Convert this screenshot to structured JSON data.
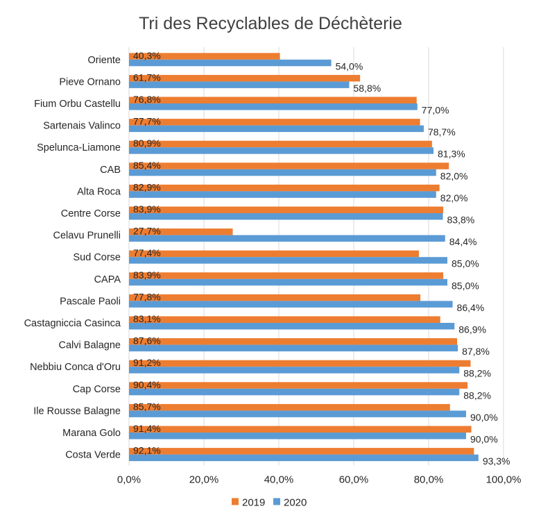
{
  "chart_data": {
    "type": "bar",
    "orientation": "horizontal",
    "title": "Tri des Recyclables de Déchèterie",
    "xlabel": "",
    "ylabel": "",
    "xlim": [
      0,
      100
    ],
    "x_ticks": [
      "0,0%",
      "20,0%",
      "40,0%",
      "60,0%",
      "80,0%",
      "100,0%"
    ],
    "grid": true,
    "legend_position": "bottom",
    "categories": [
      "Oriente",
      "Pieve Ornano",
      "Fium Orbu Castellu",
      "Sartenais Valinco",
      "Spelunca-Liamone",
      "CAB",
      "Alta Roca",
      "Centre Corse",
      "Celavu Prunelli",
      "Sud Corse",
      "CAPA",
      "Pascale Paoli",
      "Castagniccia Casinca",
      "Calvi Balagne",
      "Nebbiu Conca d'Oru",
      "Cap Corse",
      "Ile Rousse Balagne",
      "Marana Golo",
      "Costa Verde"
    ],
    "series": [
      {
        "name": "2019",
        "color": "#ed7d31",
        "values": [
          40.3,
          61.7,
          76.8,
          77.7,
          80.9,
          85.4,
          82.9,
          83.9,
          27.7,
          77.4,
          83.9,
          77.8,
          83.1,
          87.6,
          91.2,
          90.4,
          85.7,
          91.4,
          92.1
        ],
        "labels": [
          "40,3%",
          "61,7%",
          "76,8%",
          "77,7%",
          "80,9%",
          "85,4%",
          "82,9%",
          "83,9%",
          "27,7%",
          "77,4%",
          "83,9%",
          "77,8%",
          "83,1%",
          "87,6%",
          "91,2%",
          "90,4%",
          "85,7%",
          "91,4%",
          "92,1%"
        ]
      },
      {
        "name": "2020",
        "color": "#5b9bd5",
        "values": [
          54.0,
          58.8,
          77.0,
          78.7,
          81.3,
          82.0,
          82.0,
          83.8,
          84.4,
          85.0,
          85.0,
          86.4,
          86.9,
          87.8,
          88.2,
          88.2,
          90.0,
          90.0,
          93.3
        ],
        "labels": [
          "54,0%",
          "58,8%",
          "77,0%",
          "78,7%",
          "81,3%",
          "82,0%",
          "82,0%",
          "83,8%",
          "84,4%",
          "85,0%",
          "85,0%",
          "86,4%",
          "86,9%",
          "87,8%",
          "88,2%",
          "88,2%",
          "90,0%",
          "90,0%",
          "93,3%"
        ]
      }
    ]
  }
}
